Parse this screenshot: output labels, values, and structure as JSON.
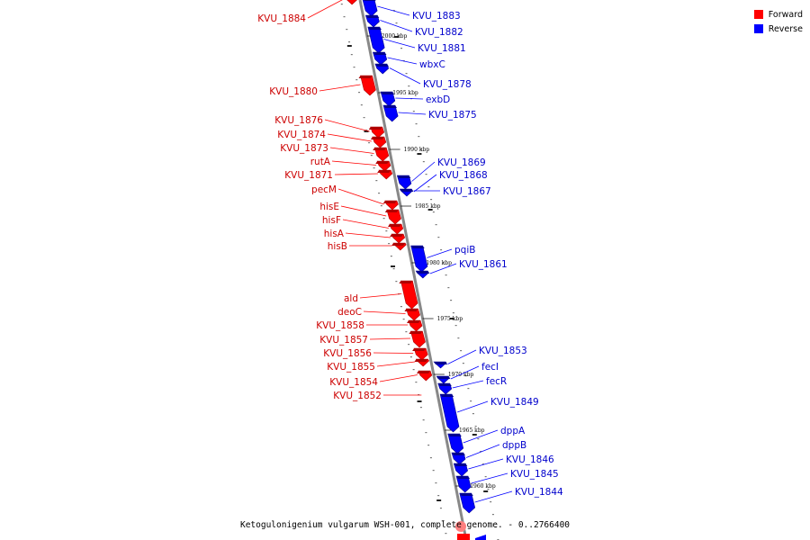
{
  "legend": [
    {
      "label": "Forward",
      "color": "#ff0000"
    },
    {
      "label": "Reverse",
      "color": "#0000ff"
    }
  ],
  "caption": "Ketogulonigenium vulgarum WSH-001, complete genome. - 0..2766400",
  "ticks": [
    "2000 kbp",
    "1995 kbp",
    "1990 kbp",
    "1985 kbp",
    "1980 kbp",
    "1975 kbp",
    "1970 kbp",
    "1965 kbp",
    "1960 kbp"
  ],
  "forward_genes": [
    "KVU_1884",
    "KVU_1880",
    "KVU_1876",
    "KVU_1874",
    "KVU_1873",
    "rutA",
    "KVU_1871",
    "pecM",
    "hisE",
    "hisF",
    "hisA",
    "hisB",
    "ald",
    "deoC",
    "KVU_1858",
    "KVU_1857",
    "KVU_1856",
    "KVU_1855",
    "KVU_1854",
    "KVU_1852"
  ],
  "reverse_genes": [
    "KVU_1883",
    "KVU_1882",
    "KVU_1881",
    "wbxC",
    "KVU_1878",
    "exbD",
    "KVU_1875",
    "KVU_1869",
    "KVU_1868",
    "KVU_1867",
    "pqiB",
    "KVU_1861",
    "KVU_1853",
    "fecI",
    "fecR",
    "KVU_1849",
    "dppA",
    "dppB",
    "KVU_1846",
    "KVU_1845",
    "KVU_1844"
  ]
}
